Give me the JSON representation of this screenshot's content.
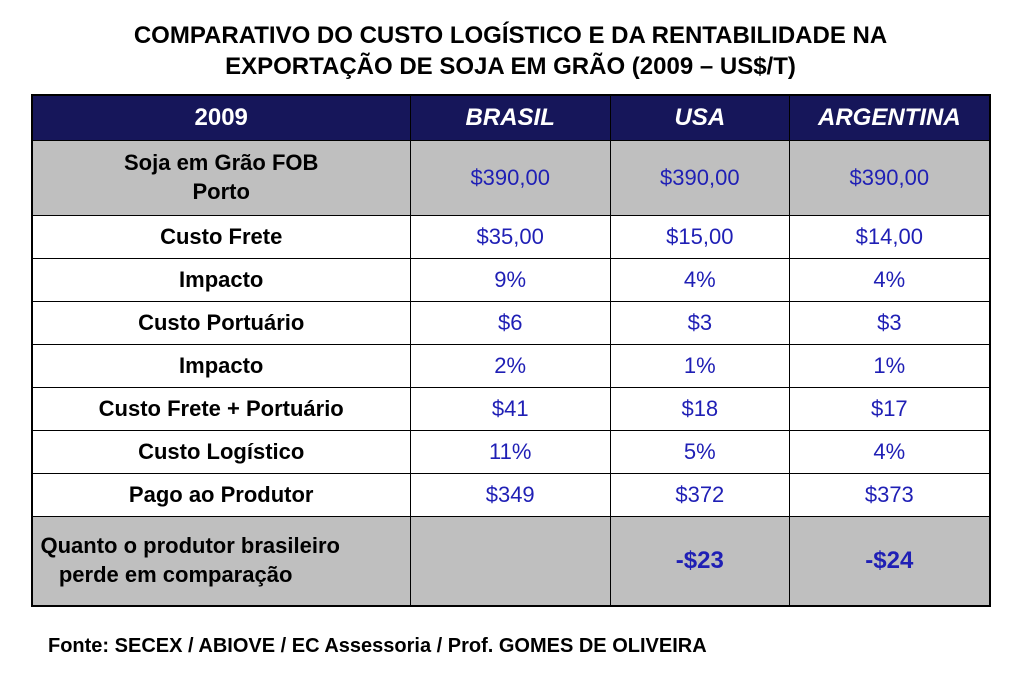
{
  "title_line1": "COMPARATIVO DO CUSTO LOGÍSTICO E DA RENTABILIDADE NA",
  "title_line2": "EXPORTAÇÃO DE SOJA EM GRÃO (2009 – US$/T)",
  "headers": {
    "year": "2009",
    "brasil": "BRASIL",
    "usa": "USA",
    "argentina": "ARGENTINA"
  },
  "rows": [
    {
      "label_line1": "Soja em Grão FOB",
      "label_line2": "Porto",
      "brasil": "$390,00",
      "usa": "$390,00",
      "argentina": "$390,00",
      "bg": "gray",
      "multiline": true
    },
    {
      "label": "Custo Frete",
      "brasil": "$35,00",
      "usa": "$15,00",
      "argentina": "$14,00",
      "bg": "white"
    },
    {
      "label": "Impacto",
      "brasil": "9%",
      "usa": "4%",
      "argentina": "4%",
      "bg": "white"
    },
    {
      "label": "Custo Portuário",
      "brasil": "$6",
      "usa": "$3",
      "argentina": "$3",
      "bg": "white"
    },
    {
      "label": "Impacto",
      "brasil": "2%",
      "usa": "1%",
      "argentina": "1%",
      "bg": "white"
    },
    {
      "label": "Custo Frete + Portuário",
      "brasil": "$41",
      "usa": "$18",
      "argentina": "$17",
      "bg": "white"
    },
    {
      "label": "Custo Logístico",
      "brasil": "11%",
      "usa": "5%",
      "argentina": "4%",
      "bg": "white"
    },
    {
      "label": "Pago ao Produtor",
      "brasil": "$349",
      "usa": "$372",
      "argentina": "$373",
      "bg": "white"
    }
  ],
  "footer_row": {
    "label_line1": "Quanto o produtor brasileiro",
    "label_line2": "perde em comparação",
    "brasil": "",
    "usa": "-$23",
    "argentina": "-$24"
  },
  "source": "Fonte: SECEX / ABIOVE / EC Assessoria / Prof. GOMES DE OLIVEIRA",
  "colors": {
    "header_bg": "#16165a",
    "header_text": "#ffffff",
    "gray_bg": "#bfbfbf",
    "white_bg": "#ffffff",
    "value_text": "#1f1fb5",
    "label_text": "#000000",
    "border": "#000000"
  }
}
